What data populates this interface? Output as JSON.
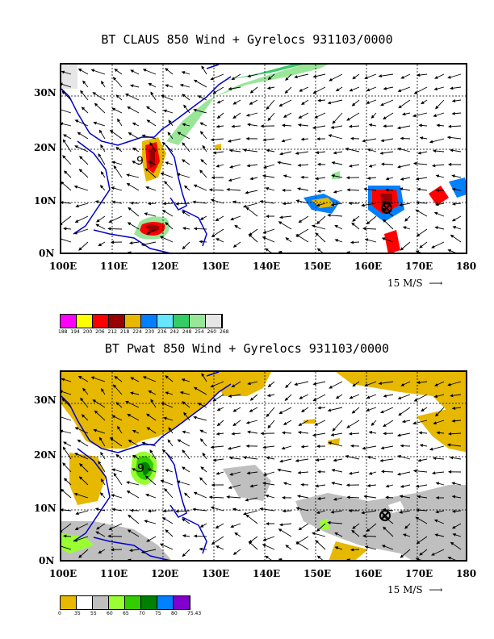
{
  "map1": {
    "title": "BT CLAUS 850 Wind + Gyrelocs 931103/0000",
    "lat_labels": [
      "30N",
      "20N",
      "10N",
      "0N"
    ],
    "lon_labels": [
      "100E",
      "110E",
      "120E",
      "130E",
      "140E",
      "150E",
      "160E",
      "170E",
      "180"
    ],
    "ref_vector": "15 M/S",
    "legend_colors": [
      "#ff00ff",
      "#ffff00",
      "#ff0000",
      "#990000",
      "#e6b800",
      "#0080ff",
      "#66e6ff",
      "#33cc66",
      "#99e699",
      "#e6e6e6"
    ],
    "legend_values": [
      "188",
      "194",
      "200",
      "206",
      "212",
      "218",
      "224",
      "230",
      "236",
      "242",
      "248",
      "254",
      "260",
      "268"
    ]
  },
  "map2": {
    "title": "BT Pwat 850 Wind + Gyrelocs 931103/0000",
    "lat_labels": [
      "30N",
      "20N",
      "10N",
      "0N"
    ],
    "lon_labels": [
      "100E",
      "110E",
      "120E",
      "130E",
      "140E",
      "150E",
      "160E",
      "170E",
      "180"
    ],
    "ref_vector": "15 M/S",
    "legend_colors": [
      "#e6b800",
      "#ffffff",
      "#bfbfbf",
      "#99ff33",
      "#33cc00",
      "#008000",
      "#0080ff",
      "#8000cc"
    ],
    "legend_values": [
      "0",
      "35",
      "55",
      "60",
      "65",
      "70",
      "75",
      "80",
      "75.43"
    ]
  },
  "markers": {
    "gyre_label": "9"
  }
}
